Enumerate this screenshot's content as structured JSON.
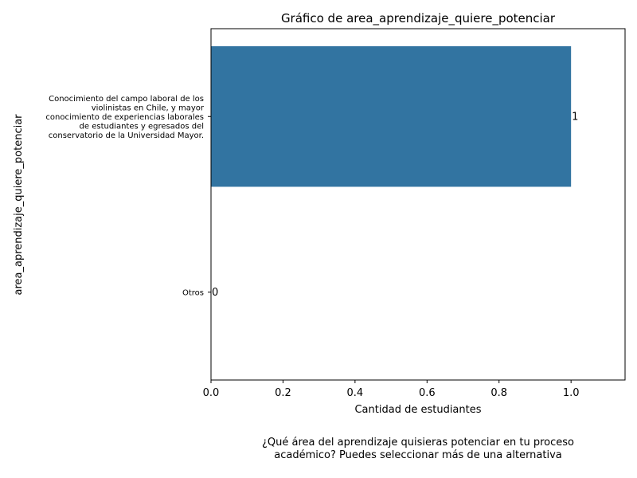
{
  "chart_data": {
    "type": "bar",
    "orientation": "horizontal",
    "title": "Gráfico de area_aprendizaje_quiere_potenciar",
    "xlabel": "Cantidad de estudiantes",
    "ylabel": "area_aprendizaje_quiere_potenciar",
    "categories": [
      [
        "Conocimiento del campo laboral de los",
        "violinistas en Chile, y mayor",
        "conocimiento de experiencias laborales",
        "de estudiantes y egresados del",
        "conservatorio de la Universidad Mayor."
      ],
      [
        "Otros"
      ]
    ],
    "values": [
      1,
      0
    ],
    "data_labels": [
      "1",
      "0"
    ],
    "xlim": [
      0,
      1.15
    ],
    "xticks": [
      "0.0",
      "0.2",
      "0.4",
      "0.6",
      "0.8",
      "1.0"
    ],
    "grid": false,
    "bar_color": "#3274a1"
  },
  "caption": {
    "line1": "¿Qué área del aprendizaje quisieras potenciar en tu proceso",
    "line2": "académico? Puedes seleccionar más de una alternativa"
  }
}
